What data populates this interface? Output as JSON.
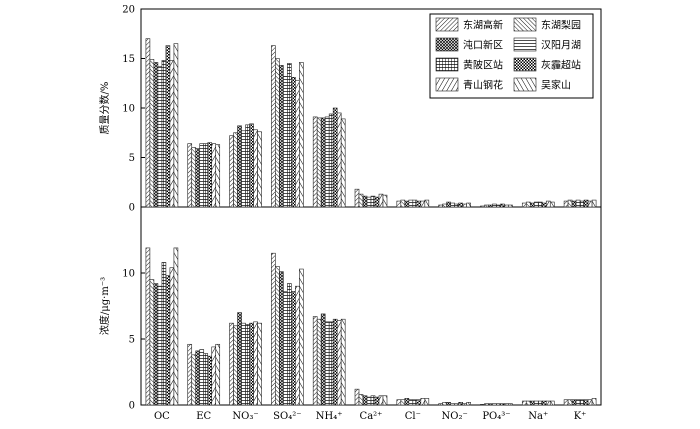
{
  "chart_data": {
    "type": "bar",
    "categories": [
      "OC",
      "EC",
      "NO₃⁻",
      "SO₄²⁻",
      "NH₄⁺",
      "Ca²⁺",
      "Cl⁻",
      "NO₂⁻",
      "PO₄³⁻",
      "Na⁺",
      "K⁺"
    ],
    "legend": {
      "placement": "top-right",
      "entries": [
        "东湖高新",
        "东湖梨园",
        "沌口新区",
        "汉阳月湖",
        "黄陂区站",
        "灰霾超站",
        "青山钢花",
        "吴家山"
      ]
    },
    "panels": [
      {
        "ylabel": "质量分数/%",
        "ylim": [
          0,
          20
        ],
        "yticks": [
          "0",
          "5",
          "10",
          "15",
          "20"
        ],
        "series": [
          {
            "name": "东湖高新",
            "values": [
              17.0,
              6.4,
              7.2,
              16.3,
              9.1,
              1.8,
              0.6,
              0.2,
              0.1,
              0.4,
              0.6
            ]
          },
          {
            "name": "东湖梨园",
            "values": [
              14.9,
              6.0,
              7.5,
              15.0,
              9.0,
              1.3,
              0.7,
              0.3,
              0.2,
              0.5,
              0.7
            ]
          },
          {
            "name": "沌口新区",
            "values": [
              14.6,
              5.9,
              8.2,
              14.3,
              9.0,
              1.1,
              0.6,
              0.5,
              0.2,
              0.4,
              0.6
            ]
          },
          {
            "name": "汉阳月湖",
            "values": [
              14.2,
              6.4,
              7.7,
              13.2,
              9.1,
              1.0,
              0.7,
              0.4,
              0.3,
              0.5,
              0.7
            ]
          },
          {
            "name": "黄陂区站",
            "values": [
              14.8,
              6.4,
              8.3,
              14.5,
              9.4,
              1.1,
              0.7,
              0.3,
              0.2,
              0.5,
              0.6
            ]
          },
          {
            "name": "灰霾超站",
            "values": [
              16.3,
              6.5,
              8.4,
              13.1,
              10.0,
              1.0,
              0.6,
              0.4,
              0.3,
              0.4,
              0.7
            ]
          },
          {
            "name": "青山钢花",
            "values": [
              14.8,
              6.4,
              7.8,
              12.8,
              9.5,
              1.3,
              0.6,
              0.3,
              0.2,
              0.6,
              0.6
            ]
          },
          {
            "name": "吴家山",
            "values": [
              16.5,
              6.3,
              7.6,
              14.6,
              8.9,
              1.2,
              0.7,
              0.4,
              0.2,
              0.5,
              0.7
            ]
          }
        ]
      },
      {
        "ylabel": "浓度/μg·m⁻³",
        "ylim": [
          0,
          15
        ],
        "yticks": [
          "0",
          "5",
          "10"
        ],
        "series": [
          {
            "name": "东湖高新",
            "values": [
              11.9,
              4.6,
              6.2,
              11.5,
              6.7,
              1.2,
              0.4,
              0.1,
              0.05,
              0.3,
              0.4
            ]
          },
          {
            "name": "东湖梨园",
            "values": [
              9.5,
              3.8,
              6.0,
              10.5,
              6.5,
              0.8,
              0.4,
              0.2,
              0.1,
              0.3,
              0.4
            ]
          },
          {
            "name": "沌口新区",
            "values": [
              9.2,
              4.1,
              7.0,
              10.1,
              6.9,
              0.7,
              0.5,
              0.2,
              0.1,
              0.3,
              0.4
            ]
          },
          {
            "name": "汉阳月湖",
            "values": [
              9.0,
              4.2,
              6.2,
              8.6,
              6.3,
              0.6,
              0.4,
              0.1,
              0.1,
              0.3,
              0.4
            ]
          },
          {
            "name": "黄陂区站",
            "values": [
              10.8,
              3.9,
              6.1,
              9.2,
              6.3,
              0.7,
              0.4,
              0.1,
              0.1,
              0.3,
              0.4
            ]
          },
          {
            "name": "灰霾超站",
            "values": [
              9.8,
              3.7,
              6.2,
              8.6,
              6.5,
              0.6,
              0.4,
              0.2,
              0.1,
              0.3,
              0.4
            ]
          },
          {
            "name": "青山钢花",
            "values": [
              10.4,
              4.4,
              6.3,
              9.0,
              6.4,
              0.7,
              0.5,
              0.1,
              0.1,
              0.3,
              0.4
            ]
          },
          {
            "name": "吴家山",
            "values": [
              11.9,
              4.6,
              6.2,
              10.3,
              6.5,
              0.7,
              0.5,
              0.2,
              0.1,
              0.3,
              0.5
            ]
          }
        ]
      }
    ],
    "grid": false
  }
}
